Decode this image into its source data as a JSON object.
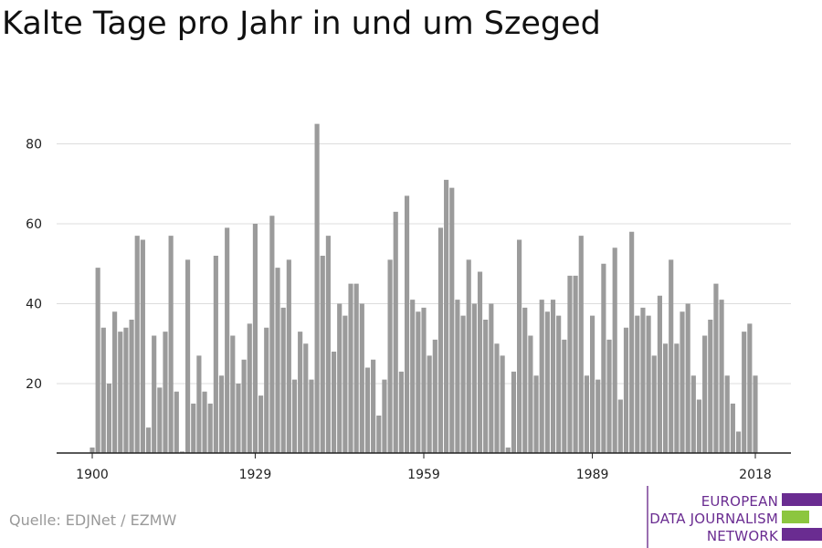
{
  "title": "Kalte Tage pro Jahr in und um Szeged",
  "source": "Quelle: EDJNet / EZMW",
  "logo": {
    "lines": [
      "EUROPEAN",
      "DATA JOURNALISM",
      "NETWORK"
    ],
    "colors": {
      "purple": "#6a2c91",
      "green": "#8cc63f"
    }
  },
  "colors": {
    "bar": "#9b9b9b",
    "grid": "#dddddd",
    "axis": "#222222"
  },
  "chart_data": {
    "type": "bar",
    "title": "Kalte Tage pro Jahr in und um Szeged",
    "xlabel": "",
    "ylabel": "",
    "x": [
      1900,
      1901,
      1902,
      1903,
      1904,
      1905,
      1906,
      1907,
      1908,
      1909,
      1910,
      1911,
      1912,
      1913,
      1914,
      1915,
      1916,
      1917,
      1918,
      1919,
      1920,
      1921,
      1922,
      1923,
      1924,
      1925,
      1926,
      1927,
      1928,
      1929,
      1930,
      1931,
      1932,
      1933,
      1934,
      1935,
      1936,
      1937,
      1938,
      1939,
      1940,
      1941,
      1942,
      1943,
      1944,
      1945,
      1946,
      1947,
      1948,
      1949,
      1950,
      1951,
      1952,
      1953,
      1954,
      1955,
      1956,
      1957,
      1958,
      1959,
      1960,
      1961,
      1962,
      1963,
      1964,
      1965,
      1966,
      1967,
      1968,
      1969,
      1970,
      1971,
      1972,
      1973,
      1974,
      1975,
      1976,
      1977,
      1978,
      1979,
      1980,
      1981,
      1982,
      1983,
      1984,
      1985,
      1986,
      1987,
      1988,
      1989,
      1990,
      1991,
      1992,
      1993,
      1994,
      1995,
      1996,
      1997,
      1998,
      1999,
      2000,
      2001,
      2002,
      2003,
      2004,
      2005,
      2006,
      2007,
      2008,
      2009,
      2010,
      2011,
      2012,
      2013,
      2014,
      2015,
      2016,
      2017,
      2018
    ],
    "values": [
      4,
      49,
      34,
      20,
      38,
      33,
      34,
      36,
      57,
      56,
      9,
      32,
      19,
      33,
      57,
      18,
      0,
      51,
      15,
      27,
      18,
      15,
      52,
      22,
      59,
      32,
      20,
      26,
      35,
      60,
      17,
      34,
      62,
      49,
      39,
      51,
      21,
      33,
      30,
      21,
      85,
      52,
      57,
      28,
      40,
      37,
      45,
      45,
      40,
      24,
      26,
      12,
      21,
      51,
      63,
      23,
      67,
      41,
      38,
      39,
      27,
      31,
      59,
      71,
      69,
      41,
      37,
      51,
      40,
      48,
      36,
      40,
      30,
      27,
      4,
      23,
      56,
      39,
      32,
      22,
      41,
      38,
      41,
      37,
      31,
      47,
      47,
      57,
      22,
      37,
      21,
      50,
      31,
      54,
      16,
      34,
      58,
      37,
      39,
      37,
      27,
      42,
      30,
      51,
      30,
      38,
      40,
      22,
      16,
      32,
      36,
      45,
      41,
      22,
      15,
      8,
      33,
      35,
      22
    ],
    "x_ticks": [
      1900,
      1929,
      1959,
      1989,
      2018
    ],
    "y_ticks": [
      20,
      40,
      60,
      80
    ],
    "ylim": [
      3,
      88
    ],
    "grid": true,
    "legend": "none"
  }
}
